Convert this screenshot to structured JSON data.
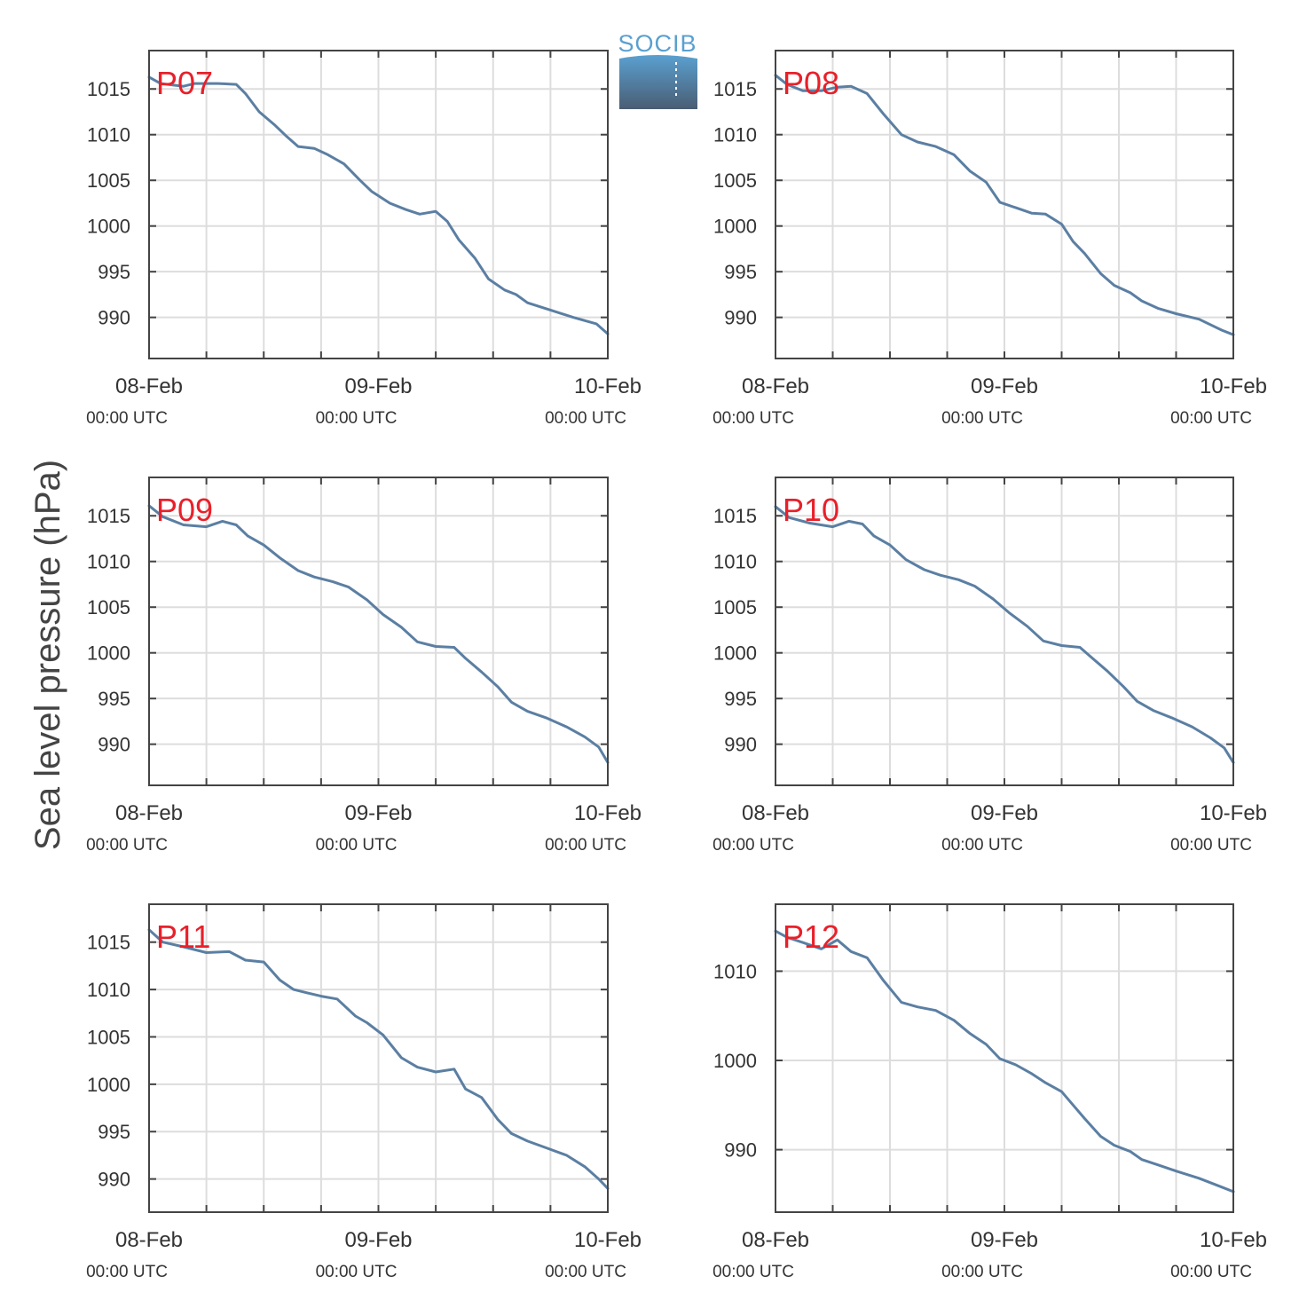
{
  "figure": {
    "ylabel": "Sea level pressure (hPa)",
    "logo_text": "SOCIB"
  },
  "colors": {
    "line": "#5b7fa3",
    "panel_label": "#e8202a",
    "grid": "#dddddd",
    "frame": "#444444",
    "logo_top": "#5aa0d0",
    "logo_bottom": "#4a5d73"
  },
  "chart_data": [
    {
      "type": "line",
      "label": "P07",
      "x_ticks": [
        {
          "day": 0,
          "date": "08-Feb",
          "time": "00:00 UTC"
        },
        {
          "day": 1,
          "date": "09-Feb",
          "time": "00:00 UTC"
        },
        {
          "day": 2,
          "date": "10-Feb",
          "time": "00:00 UTC"
        }
      ],
      "xlim": [
        0,
        2
      ],
      "x_grid_step_hours": 6,
      "ylim": [
        985.5,
        1019.2
      ],
      "yticks": [
        990,
        995,
        1000,
        1005,
        1010,
        1015
      ],
      "grid": true,
      "x": [
        0,
        0.05,
        0.15,
        0.2,
        0.3,
        0.38,
        0.42,
        0.48,
        0.55,
        0.6,
        0.65,
        0.72,
        0.78,
        0.85,
        0.92,
        0.97,
        1.05,
        1.12,
        1.18,
        1.25,
        1.3,
        1.35,
        1.42,
        1.48,
        1.55,
        1.6,
        1.65,
        1.75,
        1.85,
        1.95,
        2.0
      ],
      "y": [
        1016.3,
        1015.6,
        1015.3,
        1015.6,
        1015.6,
        1015.5,
        1014.5,
        1012.5,
        1011.0,
        1009.8,
        1008.7,
        1008.5,
        1007.8,
        1006.8,
        1005.0,
        1003.8,
        1002.5,
        1001.8,
        1001.3,
        1001.6,
        1000.5,
        998.5,
        996.5,
        994.2,
        993.0,
        992.5,
        991.6,
        990.8,
        990.0,
        989.3,
        988.2
      ]
    },
    {
      "type": "line",
      "label": "P08",
      "x_ticks": [
        {
          "day": 0,
          "date": "08-Feb",
          "time": "00:00 UTC"
        },
        {
          "day": 1,
          "date": "09-Feb",
          "time": "00:00 UTC"
        },
        {
          "day": 2,
          "date": "10-Feb",
          "time": "00:00 UTC"
        }
      ],
      "xlim": [
        0,
        2
      ],
      "x_grid_step_hours": 6,
      "ylim": [
        985.5,
        1019.2
      ],
      "yticks": [
        990,
        995,
        1000,
        1005,
        1010,
        1015
      ],
      "grid": true,
      "x": [
        0,
        0.05,
        0.12,
        0.2,
        0.27,
        0.33,
        0.4,
        0.47,
        0.55,
        0.62,
        0.7,
        0.78,
        0.85,
        0.92,
        0.98,
        1.05,
        1.12,
        1.18,
        1.25,
        1.3,
        1.35,
        1.42,
        1.48,
        1.55,
        1.6,
        1.67,
        1.75,
        1.85,
        1.95,
        2.0
      ],
      "y": [
        1016.5,
        1015.5,
        1014.8,
        1014.8,
        1015.2,
        1015.3,
        1014.5,
        1012.3,
        1010.0,
        1009.2,
        1008.7,
        1007.8,
        1006.0,
        1004.8,
        1002.6,
        1002.0,
        1001.4,
        1001.3,
        1000.2,
        998.3,
        997.0,
        994.8,
        993.5,
        992.7,
        991.8,
        991.0,
        990.4,
        989.8,
        988.6,
        988.1
      ]
    },
    {
      "type": "line",
      "label": "P09",
      "x_ticks": [
        {
          "day": 0,
          "date": "08-Feb",
          "time": "00:00 UTC"
        },
        {
          "day": 1,
          "date": "09-Feb",
          "time": "00:00 UTC"
        },
        {
          "day": 2,
          "date": "10-Feb",
          "time": "00:00 UTC"
        }
      ],
      "xlim": [
        0,
        2
      ],
      "x_grid_step_hours": 6,
      "ylim": [
        985.5,
        1019.2
      ],
      "yticks": [
        990,
        995,
        1000,
        1005,
        1010,
        1015
      ],
      "grid": true,
      "x": [
        0,
        0.06,
        0.15,
        0.25,
        0.32,
        0.38,
        0.43,
        0.5,
        0.57,
        0.65,
        0.72,
        0.8,
        0.87,
        0.95,
        1.02,
        1.1,
        1.17,
        1.25,
        1.33,
        1.38,
        1.45,
        1.52,
        1.58,
        1.65,
        1.73,
        1.82,
        1.9,
        1.96,
        2.0
      ],
      "y": [
        1016.1,
        1014.9,
        1014.0,
        1013.8,
        1014.4,
        1014.0,
        1012.8,
        1011.8,
        1010.4,
        1009.0,
        1008.3,
        1007.8,
        1007.2,
        1005.8,
        1004.2,
        1002.8,
        1001.2,
        1000.7,
        1000.6,
        999.4,
        997.9,
        996.3,
        994.6,
        993.6,
        992.9,
        991.9,
        990.8,
        989.7,
        988.0
      ]
    },
    {
      "type": "line",
      "label": "P10",
      "x_ticks": [
        {
          "day": 0,
          "date": "08-Feb",
          "time": "00:00 UTC"
        },
        {
          "day": 1,
          "date": "09-Feb",
          "time": "00:00 UTC"
        },
        {
          "day": 2,
          "date": "10-Feb",
          "time": "00:00 UTC"
        }
      ],
      "xlim": [
        0,
        2
      ],
      "x_grid_step_hours": 6,
      "ylim": [
        985.5,
        1019.2
      ],
      "yticks": [
        990,
        995,
        1000,
        1005,
        1010,
        1015
      ],
      "grid": true,
      "x": [
        0,
        0.06,
        0.15,
        0.25,
        0.32,
        0.38,
        0.43,
        0.5,
        0.57,
        0.65,
        0.72,
        0.8,
        0.87,
        0.95,
        1.02,
        1.1,
        1.17,
        1.25,
        1.33,
        1.38,
        1.45,
        1.52,
        1.58,
        1.65,
        1.73,
        1.82,
        1.9,
        1.96,
        2.0
      ],
      "y": [
        1016.0,
        1014.8,
        1014.2,
        1013.8,
        1014.4,
        1014.1,
        1012.8,
        1011.8,
        1010.2,
        1009.1,
        1008.5,
        1008.0,
        1007.3,
        1005.9,
        1004.4,
        1002.9,
        1001.3,
        1000.8,
        1000.6,
        999.5,
        998.0,
        996.3,
        994.7,
        993.7,
        992.9,
        991.9,
        990.7,
        989.6,
        988.0
      ]
    },
    {
      "type": "line",
      "label": "P11",
      "x_ticks": [
        {
          "day": 0,
          "date": "08-Feb",
          "time": "00:00 UTC"
        },
        {
          "day": 1,
          "date": "09-Feb",
          "time": "00:00 UTC"
        },
        {
          "day": 2,
          "date": "10-Feb",
          "time": "00:00 UTC"
        }
      ],
      "xlim": [
        0,
        2
      ],
      "x_grid_step_hours": 6,
      "ylim": [
        986.5,
        1019.0
      ],
      "yticks": [
        990,
        995,
        1000,
        1005,
        1010,
        1015
      ],
      "grid": true,
      "x": [
        0,
        0.06,
        0.15,
        0.25,
        0.35,
        0.42,
        0.5,
        0.57,
        0.63,
        0.68,
        0.75,
        0.82,
        0.9,
        0.95,
        1.02,
        1.1,
        1.17,
        1.25,
        1.33,
        1.38,
        1.45,
        1.52,
        1.58,
        1.65,
        1.73,
        1.82,
        1.9,
        1.96,
        2.0
      ],
      "y": [
        1016.3,
        1015.0,
        1014.5,
        1013.9,
        1014.0,
        1013.1,
        1012.9,
        1011.0,
        1010.0,
        1009.7,
        1009.3,
        1009.0,
        1007.2,
        1006.5,
        1005.2,
        1002.8,
        1001.8,
        1001.3,
        1001.6,
        999.5,
        998.6,
        996.3,
        994.8,
        994.0,
        993.3,
        992.5,
        991.3,
        990.0,
        989.0
      ]
    },
    {
      "type": "line",
      "label": "P12",
      "x_ticks": [
        {
          "day": 0,
          "date": "08-Feb",
          "time": "00:00 UTC"
        },
        {
          "day": 1,
          "date": "09-Feb",
          "time": "00:00 UTC"
        },
        {
          "day": 2,
          "date": "10-Feb",
          "time": "00:00 UTC"
        }
      ],
      "xlim": [
        0,
        2
      ],
      "x_grid_step_hours": 6,
      "ylim": [
        983.0,
        1017.5
      ],
      "yticks": [
        990,
        1000,
        1010
      ],
      "grid": true,
      "x": [
        0,
        0.05,
        0.12,
        0.2,
        0.27,
        0.33,
        0.4,
        0.47,
        0.55,
        0.62,
        0.7,
        0.78,
        0.85,
        0.92,
        0.98,
        1.05,
        1.12,
        1.18,
        1.25,
        1.3,
        1.35,
        1.42,
        1.48,
        1.55,
        1.6,
        1.67,
        1.75,
        1.85,
        1.95,
        2.0
      ],
      "y": [
        1014.5,
        1013.8,
        1013.2,
        1012.5,
        1013.5,
        1012.2,
        1011.5,
        1009.0,
        1006.5,
        1006.0,
        1005.6,
        1004.5,
        1003.0,
        1001.8,
        1000.2,
        999.5,
        998.5,
        997.5,
        996.5,
        995.0,
        993.5,
        991.5,
        990.5,
        989.8,
        988.9,
        988.3,
        987.6,
        986.8,
        985.8,
        985.3
      ]
    }
  ]
}
